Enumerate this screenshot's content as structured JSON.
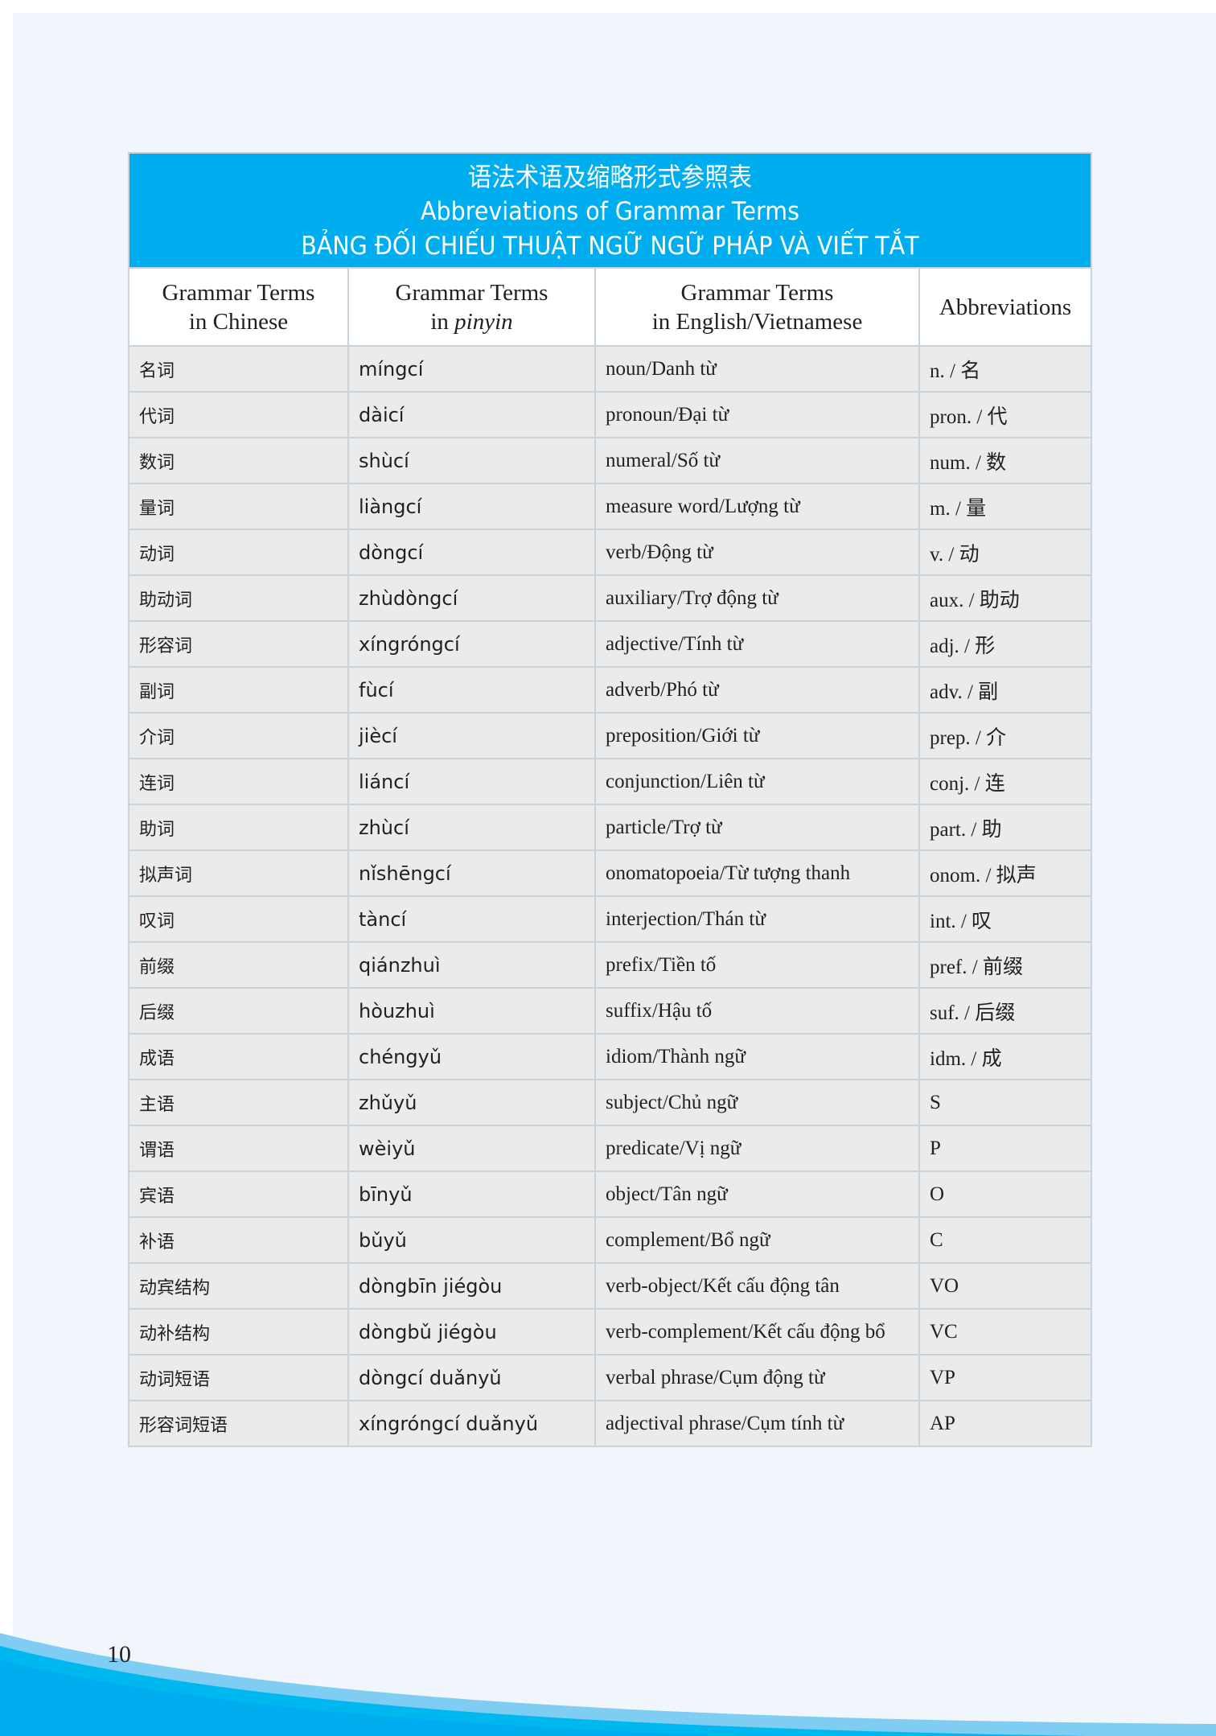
{
  "title": {
    "chinese": "语法术语及缩略形式参照表",
    "english": "Abbreviations of Grammar Terms",
    "vietnamese": "BẢNG ĐỐI CHIẾU THUẬT NGỮ NGỮ PHÁP VÀ VIẾT TẮT"
  },
  "headers": {
    "chinese": {
      "line1": "Grammar Terms",
      "line2": "in Chinese"
    },
    "pinyin": {
      "line1": "Grammar Terms",
      "line2_prefix": "in ",
      "line2_italic": "pinyin"
    },
    "english": {
      "line1": "Grammar Terms",
      "line2": "in English/Vietnamese"
    },
    "abbr": "Abbreviations"
  },
  "rows": [
    [
      "名词",
      "míngcí",
      "noun/Danh từ",
      "n. / 名"
    ],
    [
      "代词",
      "dàicí",
      "pronoun/Đại từ",
      "pron. / 代"
    ],
    [
      "数词",
      "shùcí",
      "numeral/Số từ",
      "num. / 数"
    ],
    [
      "量词",
      "liàngcí",
      "measure word/Lượng từ",
      "m. / 量"
    ],
    [
      "动词",
      "dòngcí",
      "verb/Động từ",
      "v. / 动"
    ],
    [
      "助动词",
      "zhùdòngcí",
      "auxiliary/Trợ động từ",
      "aux. / 助动"
    ],
    [
      "形容词",
      "xíngróngcí",
      "adjective/Tính từ",
      "adj. / 形"
    ],
    [
      "副词",
      "fùcí",
      "adverb/Phó từ",
      "adv. / 副"
    ],
    [
      "介词",
      "jiècí",
      "preposition/Giới từ",
      "prep. / 介"
    ],
    [
      "连词",
      "liáncí",
      "conjunction/Liên từ",
      "conj. / 连"
    ],
    [
      "助词",
      "zhùcí",
      "particle/Trợ từ",
      "part. / 助"
    ],
    [
      "拟声词",
      "nǐshēngcí",
      "onomatopoeia/Từ tượng thanh",
      "onom. / 拟声"
    ],
    [
      "叹词",
      "tàncí",
      "interjection/Thán từ",
      "int. / 叹"
    ],
    [
      "前缀",
      "qiánzhuì",
      "prefix/Tiền tố",
      "pref. / 前缀"
    ],
    [
      "后缀",
      "hòuzhuì",
      "suffix/Hậu tố",
      "suf. / 后缀"
    ],
    [
      "成语",
      "chéngyǔ",
      "idiom/Thành ngữ",
      "idm. / 成"
    ],
    [
      "主语",
      "zhǔyǔ",
      "subject/Chủ ngữ",
      "S"
    ],
    [
      "谓语",
      "wèiyǔ",
      "predicate/Vị ngữ",
      "P"
    ],
    [
      "宾语",
      "bīnyǔ",
      "object/Tân ngữ",
      "O"
    ],
    [
      "补语",
      "bǔyǔ",
      "complement/Bổ ngữ",
      "C"
    ],
    [
      "动宾结构",
      "dòngbīn jiégòu",
      "verb-object/Kết cấu động tân",
      "VO"
    ],
    [
      "动补结构",
      "dòngbǔ jiégòu",
      "verb-complement/Kết cấu động bổ",
      "VC"
    ],
    [
      "动词短语",
      "dòngcí duǎnyǔ",
      "verbal phrase/Cụm động từ",
      "VP"
    ],
    [
      "形容词短语",
      "xíngróngcí duǎnyǔ",
      "adjectival phrase/Cụm tính từ",
      "AP"
    ]
  ],
  "page_number": "10",
  "colors": {
    "accent": "#00aeef",
    "row_bg": "#ebebeb",
    "page_bg": "#f0f6fb"
  }
}
